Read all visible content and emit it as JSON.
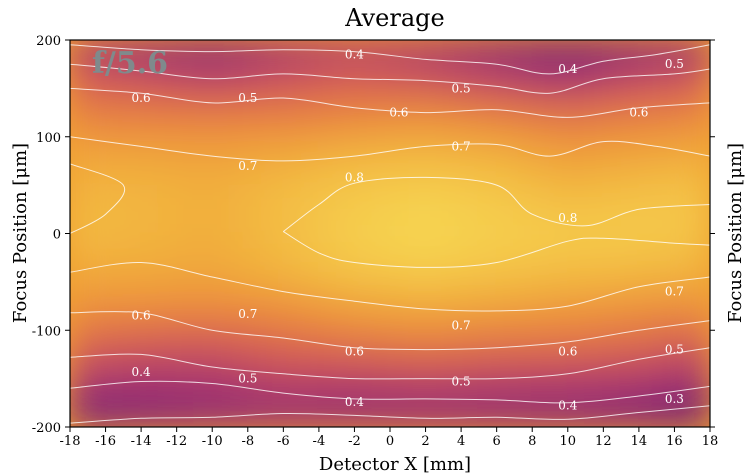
{
  "chart_data": {
    "type": "heatmap",
    "title": "Average",
    "panel_label": "f/5.6",
    "xlabel": "Detector X [mm]",
    "ylabel": "Focus Position [μm]",
    "ylabel_right": "Focus Position [μm]",
    "xlim": [
      -18,
      18
    ],
    "ylim": [
      -200,
      200
    ],
    "x_ticks": [
      -18,
      -16,
      -14,
      -12,
      -10,
      -8,
      -6,
      -4,
      -2,
      0,
      2,
      4,
      6,
      8,
      10,
      12,
      14,
      16,
      18
    ],
    "y_ticks": [
      -200,
      -100,
      0,
      100,
      200
    ],
    "colormap": "inferno-like (purple → orange → yellow)",
    "colorbar": false,
    "grid": false,
    "contour_labels": [
      {
        "value": "0.4",
        "x": -2.0,
        "y": 185
      },
      {
        "value": "0.4",
        "x": 10.0,
        "y": 170
      },
      {
        "value": "0.5",
        "x": 16.0,
        "y": 175
      },
      {
        "value": "0.6",
        "x": -14.0,
        "y": 140
      },
      {
        "value": "0.5",
        "x": -8.0,
        "y": 140
      },
      {
        "value": "0.5",
        "x": 4.0,
        "y": 150
      },
      {
        "value": "0.6",
        "x": 0.5,
        "y": 125
      },
      {
        "value": "0.6",
        "x": 14.0,
        "y": 125
      },
      {
        "value": "0.7",
        "x": -8.0,
        "y": 70
      },
      {
        "value": "0.7",
        "x": 4.0,
        "y": 90
      },
      {
        "value": "0.8",
        "x": -2.0,
        "y": 58
      },
      {
        "value": "0.8",
        "x": 10.0,
        "y": 16
      },
      {
        "value": "0.7",
        "x": 16.0,
        "y": -60
      },
      {
        "value": "0.6",
        "x": -14.0,
        "y": -85
      },
      {
        "value": "0.7",
        "x": -8.0,
        "y": -83
      },
      {
        "value": "0.7",
        "x": 4.0,
        "y": -95
      },
      {
        "value": "0.6",
        "x": -2.0,
        "y": -122
      },
      {
        "value": "0.6",
        "x": 10.0,
        "y": -122
      },
      {
        "value": "0.5",
        "x": 16.0,
        "y": -120
      },
      {
        "value": "0.4",
        "x": -14.0,
        "y": -143
      },
      {
        "value": "0.5",
        "x": -8.0,
        "y": -150
      },
      {
        "value": "0.5",
        "x": 4.0,
        "y": -153
      },
      {
        "value": "0.4",
        "x": -2.0,
        "y": -174
      },
      {
        "value": "0.4",
        "x": 10.0,
        "y": -178
      },
      {
        "value": "0.3",
        "x": 16.0,
        "y": -171
      }
    ],
    "contours": [
      {
        "level": 0.3,
        "points": [
          [
            -18,
            -196
          ],
          [
            -14,
            -191
          ],
          [
            -10,
            -190
          ],
          [
            -6,
            -186
          ],
          [
            -2,
            -188
          ],
          [
            2,
            -191
          ],
          [
            6,
            -190
          ],
          [
            10,
            -192
          ],
          [
            14,
            -185
          ],
          [
            18,
            -178
          ]
        ]
      },
      {
        "level": 0.4,
        "points": [
          [
            -18,
            -160
          ],
          [
            -14,
            -153
          ],
          [
            -10,
            -155
          ],
          [
            -6,
            -165
          ],
          [
            -2,
            -171
          ],
          [
            2,
            -171
          ],
          [
            6,
            -172
          ],
          [
            10,
            -175
          ],
          [
            14,
            -168
          ],
          [
            18,
            -158
          ]
        ]
      },
      {
        "level": 0.5,
        "points": [
          [
            -18,
            -128
          ],
          [
            -14,
            -125
          ],
          [
            -10,
            -138
          ],
          [
            -6,
            -145
          ],
          [
            -2,
            -150
          ],
          [
            2,
            -150
          ],
          [
            6,
            -150
          ],
          [
            10,
            -145
          ],
          [
            14,
            -130
          ],
          [
            18,
            -118
          ]
        ]
      },
      {
        "level": 0.6,
        "points": [
          [
            -18,
            -82
          ],
          [
            -14,
            -82
          ],
          [
            -10,
            -100
          ],
          [
            -6,
            -108
          ],
          [
            -2,
            -118
          ],
          [
            2,
            -120
          ],
          [
            6,
            -118
          ],
          [
            10,
            -112
          ],
          [
            14,
            -100
          ],
          [
            18,
            -90
          ]
        ]
      },
      {
        "level": 0.7,
        "points": [
          [
            -18,
            -40
          ],
          [
            -14,
            -30
          ],
          [
            -10,
            -45
          ],
          [
            -6,
            -60
          ],
          [
            -2,
            -70
          ],
          [
            2,
            -78
          ],
          [
            6,
            -80
          ],
          [
            10,
            -75
          ],
          [
            14,
            -55
          ],
          [
            18,
            -45
          ]
        ]
      },
      {
        "level": 0.8,
        "points": [
          [
            -6,
            2
          ],
          [
            -4,
            30
          ],
          [
            -2,
            52
          ],
          [
            2,
            58
          ],
          [
            6,
            50
          ],
          [
            8,
            20
          ],
          [
            11,
            8
          ],
          [
            14,
            25
          ],
          [
            18,
            30
          ]
        ]
      },
      {
        "level": 0.8,
        "points": [
          [
            -6,
            2
          ],
          [
            -4,
            -20
          ],
          [
            -2,
            -30
          ],
          [
            2,
            -35
          ],
          [
            6,
            -30
          ],
          [
            10,
            -8
          ],
          [
            12,
            -5
          ],
          [
            16,
            -10
          ],
          [
            18,
            -12
          ]
        ]
      },
      {
        "level": 0.7,
        "points": [
          [
            -18,
            72
          ],
          [
            -15,
            50
          ],
          [
            -16,
            20
          ],
          [
            -18,
            0
          ]
        ]
      },
      {
        "level": 0.7,
        "points": [
          [
            -18,
            100
          ],
          [
            -14,
            90
          ],
          [
            -10,
            80
          ],
          [
            -6,
            75
          ],
          [
            -2,
            80
          ],
          [
            2,
            90
          ],
          [
            6,
            92
          ],
          [
            9,
            80
          ],
          [
            12,
            95
          ],
          [
            15,
            90
          ],
          [
            18,
            80
          ]
        ]
      },
      {
        "level": 0.6,
        "points": [
          [
            -18,
            150
          ],
          [
            -14,
            145
          ],
          [
            -10,
            135
          ],
          [
            -6,
            140
          ],
          [
            -2,
            130
          ],
          [
            2,
            125
          ],
          [
            6,
            128
          ],
          [
            10,
            120
          ],
          [
            14,
            130
          ],
          [
            18,
            135
          ]
        ]
      },
      {
        "level": 0.5,
        "points": [
          [
            -18,
            175
          ],
          [
            -14,
            168
          ],
          [
            -10,
            160
          ],
          [
            -6,
            165
          ],
          [
            -2,
            160
          ],
          [
            2,
            158
          ],
          [
            6,
            152
          ],
          [
            9,
            145
          ],
          [
            12,
            160
          ],
          [
            16,
            165
          ],
          [
            18,
            170
          ]
        ]
      },
      {
        "level": 0.4,
        "points": [
          [
            -18,
            195
          ],
          [
            -14,
            190
          ],
          [
            -10,
            188
          ],
          [
            -6,
            190
          ],
          [
            -2,
            188
          ],
          [
            2,
            180
          ],
          [
            6,
            175
          ],
          [
            9,
            165
          ],
          [
            12,
            178
          ],
          [
            15,
            185
          ],
          [
            18,
            195
          ]
        ]
      }
    ],
    "intensity_grid": {
      "x": [
        -18,
        -14,
        -10,
        -6,
        -2,
        2,
        6,
        10,
        14,
        18
      ],
      "y": [
        200,
        160,
        120,
        80,
        40,
        0,
        -40,
        -80,
        -120,
        -160,
        -200
      ],
      "z": [
        [
          0.42,
          0.36,
          0.33,
          0.4,
          0.44,
          0.42,
          0.35,
          0.3,
          0.34,
          0.38
        ],
        [
          0.55,
          0.52,
          0.48,
          0.52,
          0.55,
          0.52,
          0.48,
          0.44,
          0.5,
          0.54
        ],
        [
          0.63,
          0.62,
          0.62,
          0.62,
          0.64,
          0.66,
          0.63,
          0.6,
          0.62,
          0.64
        ],
        [
          0.72,
          0.72,
          0.71,
          0.73,
          0.76,
          0.77,
          0.75,
          0.7,
          0.72,
          0.74
        ],
        [
          0.76,
          0.76,
          0.74,
          0.78,
          0.81,
          0.83,
          0.81,
          0.77,
          0.79,
          0.8
        ],
        [
          0.78,
          0.76,
          0.74,
          0.78,
          0.83,
          0.85,
          0.83,
          0.82,
          0.82,
          0.8
        ],
        [
          0.73,
          0.73,
          0.72,
          0.76,
          0.8,
          0.82,
          0.8,
          0.78,
          0.77,
          0.75
        ],
        [
          0.66,
          0.65,
          0.64,
          0.66,
          0.7,
          0.72,
          0.7,
          0.68,
          0.66,
          0.65
        ],
        [
          0.56,
          0.53,
          0.52,
          0.56,
          0.58,
          0.6,
          0.58,
          0.58,
          0.56,
          0.52
        ],
        [
          0.44,
          0.43,
          0.44,
          0.47,
          0.46,
          0.47,
          0.46,
          0.45,
          0.44,
          0.4
        ],
        [
          0.3,
          0.34,
          0.37,
          0.38,
          0.38,
          0.38,
          0.37,
          0.36,
          0.34,
          0.28
        ]
      ]
    }
  }
}
